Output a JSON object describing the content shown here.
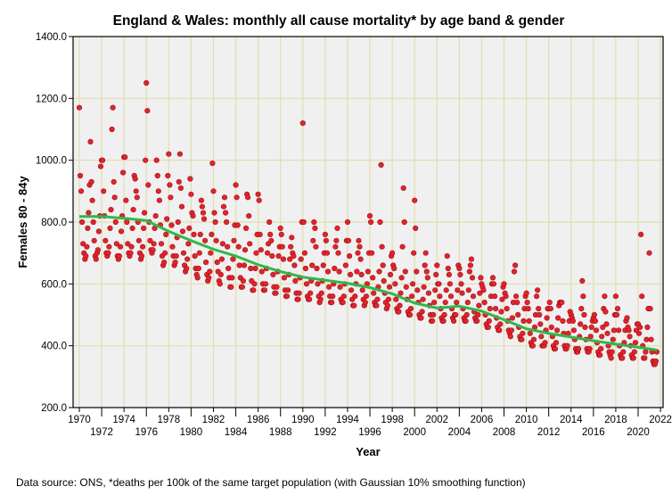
{
  "chart_data": {
    "type": "scatter",
    "title": "England & Wales: monthly all cause mortality* by age band & gender",
    "xlabel": "Year",
    "ylabel": "Females 80 - 84y",
    "footnote": "Data source: ONS, *deaths per 100k of the same target population (with Gaussian 10% smoothing function)",
    "xlim": [
      1970,
      2022
    ],
    "ylim": [
      200,
      1400
    ],
    "x_ticks": [
      "1970",
      "1972",
      "1974",
      "1976",
      "1978",
      "1980",
      "1982",
      "1984",
      "1986",
      "1988",
      "1990",
      "1992",
      "1994",
      "1996",
      "1998",
      "2000",
      "2002",
      "2004",
      "2006",
      "2008",
      "2010",
      "2012",
      "2014",
      "2016",
      "2018",
      "2020",
      "2022"
    ],
    "y_ticks": [
      "200.0",
      "400.0",
      "600.0",
      "800.0",
      "1000.0",
      "1200.0",
      "1400.0"
    ],
    "grid": true,
    "colors": {
      "points": "#e0242c",
      "point_edge": "#a01018",
      "smooth": "#2fb84a",
      "plot_bg": "#f0f0f0",
      "grid": "#e2dcb0"
    },
    "series": [
      {
        "name": "Monthly mortality",
        "start_year": 1970,
        "monthly_values_by_year": [
          [
            1170,
            950,
            900,
            800,
            730,
            700,
            680,
            690,
            720,
            780,
            830,
            920
          ],
          [
            1060,
            930,
            870,
            800,
            740,
            690,
            680,
            700,
            710,
            770,
            820,
            980
          ],
          [
            1000,
            1000,
            900,
            820,
            740,
            700,
            690,
            700,
            720,
            780,
            840,
            1100
          ],
          [
            1170,
            930,
            880,
            800,
            730,
            690,
            680,
            690,
            720,
            770,
            820,
            960
          ],
          [
            1010,
            1010,
            870,
            800,
            730,
            700,
            690,
            700,
            720,
            780,
            840,
            950
          ],
          [
            940,
            900,
            880,
            800,
            740,
            700,
            680,
            690,
            720,
            780,
            830,
            1000
          ],
          [
            1250,
            1160,
            920,
            800,
            740,
            710,
            700,
            710,
            730,
            780,
            820,
            1000
          ],
          [
            950,
            900,
            870,
            790,
            730,
            690,
            660,
            670,
            700,
            760,
            810,
            950
          ],
          [
            1020,
            920,
            880,
            790,
            720,
            690,
            660,
            670,
            690,
            750,
            800,
            930
          ],
          [
            1020,
            910,
            850,
            770,
            700,
            660,
            640,
            650,
            680,
            730,
            780,
            940
          ],
          [
            890,
            830,
            820,
            760,
            690,
            650,
            630,
            620,
            650,
            700,
            760,
            870
          ],
          [
            850,
            830,
            810,
            740,
            670,
            630,
            610,
            620,
            640,
            700,
            760,
            990
          ],
          [
            900,
            830,
            800,
            740,
            670,
            640,
            610,
            600,
            630,
            680,
            730,
            850
          ],
          [
            880,
            830,
            800,
            720,
            650,
            620,
            590,
            590,
            620,
            680,
            740,
            790
          ],
          [
            920,
            880,
            790,
            720,
            660,
            620,
            590,
            590,
            610,
            660,
            710,
            780
          ],
          [
            890,
            880,
            820,
            730,
            650,
            610,
            580,
            580,
            600,
            650,
            700,
            760
          ],
          [
            890,
            870,
            760,
            710,
            640,
            600,
            580,
            580,
            600,
            650,
            700,
            730
          ],
          [
            800,
            760,
            740,
            690,
            630,
            590,
            570,
            570,
            590,
            640,
            690,
            720
          ],
          [
            780,
            760,
            720,
            680,
            620,
            580,
            560,
            560,
            580,
            630,
            680,
            720
          ],
          [
            750,
            700,
            690,
            660,
            610,
            570,
            550,
            550,
            570,
            620,
            680,
            800
          ],
          [
            1120,
            800,
            700,
            650,
            600,
            560,
            550,
            550,
            570,
            610,
            660,
            740
          ],
          [
            800,
            780,
            720,
            650,
            600,
            560,
            540,
            550,
            570,
            610,
            660,
            700
          ],
          [
            760,
            740,
            700,
            640,
            590,
            560,
            540,
            540,
            560,
            600,
            650,
            720
          ],
          [
            740,
            780,
            700,
            640,
            590,
            550,
            540,
            540,
            560,
            600,
            660,
            740
          ],
          [
            800,
            740,
            690,
            630,
            580,
            550,
            530,
            530,
            560,
            600,
            640,
            700
          ],
          [
            740,
            720,
            680,
            630,
            580,
            550,
            530,
            540,
            560,
            600,
            640,
            700
          ],
          [
            820,
            800,
            700,
            620,
            570,
            540,
            530,
            530,
            550,
            590,
            640,
            800
          ],
          [
            985,
            720,
            660,
            610,
            570,
            540,
            520,
            530,
            550,
            590,
            630,
            690
          ],
          [
            700,
            660,
            650,
            600,
            550,
            520,
            510,
            510,
            530,
            570,
            620,
            720
          ],
          [
            910,
            800,
            640,
            590,
            550,
            510,
            500,
            500,
            520,
            560,
            600,
            700
          ],
          [
            870,
            780,
            640,
            580,
            540,
            500,
            490,
            490,
            510,
            550,
            590,
            660
          ],
          [
            700,
            640,
            620,
            570,
            530,
            500,
            480,
            480,
            500,
            540,
            580,
            630
          ],
          [
            660,
            600,
            600,
            560,
            520,
            490,
            480,
            480,
            500,
            540,
            580,
            690
          ],
          [
            650,
            630,
            600,
            560,
            520,
            490,
            480,
            500,
            500,
            540,
            580,
            660
          ],
          [
            650,
            630,
            600,
            570,
            520,
            490,
            480,
            480,
            500,
            540,
            580,
            640
          ],
          [
            660,
            680,
            620,
            560,
            510,
            490,
            480,
            480,
            500,
            530,
            570,
            620
          ],
          [
            600,
            590,
            580,
            540,
            500,
            470,
            460,
            460,
            480,
            520,
            560,
            600
          ],
          [
            620,
            600,
            560,
            520,
            490,
            460,
            450,
            450,
            470,
            510,
            550,
            590
          ],
          [
            600,
            570,
            560,
            520,
            480,
            450,
            440,
            430,
            450,
            490,
            540,
            640
          ],
          [
            660,
            560,
            540,
            500,
            460,
            430,
            420,
            420,
            440,
            480,
            520,
            560
          ],
          [
            570,
            540,
            520,
            480,
            440,
            410,
            400,
            400,
            420,
            460,
            500,
            560
          ],
          [
            580,
            520,
            500,
            470,
            430,
            400,
            400,
            400,
            410,
            450,
            490,
            520
          ],
          [
            520,
            540,
            520,
            460,
            430,
            400,
            390,
            390,
            410,
            450,
            490,
            530
          ],
          [
            540,
            540,
            540,
            480,
            440,
            400,
            390,
            390,
            400,
            440,
            480,
            510
          ],
          [
            500,
            490,
            480,
            450,
            420,
            390,
            380,
            380,
            390,
            430,
            470,
            520
          ],
          [
            610,
            560,
            500,
            460,
            420,
            390,
            380,
            380,
            390,
            430,
            460,
            480
          ],
          [
            490,
            500,
            480,
            450,
            410,
            380,
            370,
            370,
            390,
            430,
            460,
            520
          ],
          [
            560,
            510,
            470,
            440,
            400,
            380,
            370,
            360,
            380,
            420,
            450,
            500
          ],
          [
            560,
            500,
            520,
            450,
            400,
            370,
            360,
            360,
            380,
            410,
            450,
            480
          ],
          [
            490,
            460,
            450,
            430,
            400,
            370,
            360,
            360,
            380,
            410,
            450,
            470
          ],
          [
            470,
            440,
            460,
            760,
            560,
            400,
            360,
            360,
            380,
            420,
            460,
            520
          ],
          [
            700,
            520,
            420,
            380,
            350,
            340,
            340,
            350,
            380
          ]
        ]
      },
      {
        "name": "Gaussian 10% smoothing",
        "years": [
          1970,
          1972,
          1974,
          1976,
          1978,
          1980,
          1982,
          1984,
          1986,
          1988,
          1990,
          1992,
          1994,
          1996,
          1998,
          2000,
          2002,
          2004,
          2006,
          2008,
          2010,
          2012,
          2014,
          2016,
          2018,
          2020,
          2021.7
        ],
        "values": [
          818,
          818,
          812,
          805,
          770,
          740,
          712,
          690,
          662,
          640,
          622,
          612,
          602,
          588,
          568,
          538,
          522,
          528,
          512,
          484,
          455,
          440,
          428,
          416,
          405,
          395,
          386
        ]
      }
    ]
  }
}
